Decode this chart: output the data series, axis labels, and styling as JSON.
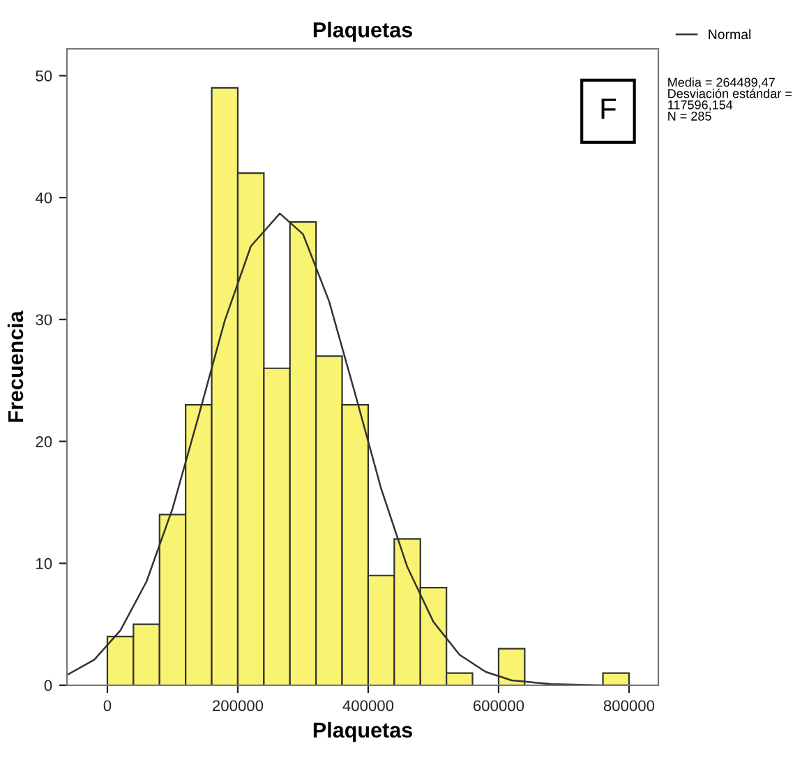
{
  "chart_data": {
    "type": "histogram",
    "title": "Plaquetas",
    "xlabel": "Plaquetas",
    "ylabel": "Frecuencia",
    "bins": [
      0,
      40000,
      80000,
      120000,
      160000,
      200000,
      240000,
      280000,
      320000,
      360000,
      400000,
      440000,
      480000,
      520000,
      560000,
      600000,
      640000,
      680000,
      720000,
      760000,
      800000
    ],
    "values": [
      4,
      5,
      14,
      23,
      49,
      42,
      26,
      38,
      27,
      23,
      9,
      12,
      8,
      1,
      0,
      3,
      0,
      0,
      0,
      1
    ],
    "color": "#f8f471",
    "series": [
      {
        "type": "line",
        "name": "Normal",
        "color": "#333333",
        "x": [
          -60000,
          -20000,
          20000,
          60000,
          100000,
          140000,
          180000,
          220000,
          264489,
          300000,
          340000,
          380000,
          420000,
          460000,
          500000,
          540000,
          580000,
          620000,
          680000,
          760000,
          800000
        ],
        "values": [
          0.9,
          2.1,
          4.5,
          8.5,
          14.5,
          22.1,
          29.9,
          36.0,
          38.7,
          37.0,
          31.5,
          23.9,
          16.1,
          9.7,
          5.2,
          2.5,
          1.1,
          0.4,
          0.1,
          0,
          0
        ]
      }
    ],
    "xlim": [
      -62000,
      845000
    ],
    "xticks": [
      0,
      200000,
      400000,
      600000,
      800000
    ],
    "ylim": [
      0,
      52.2
    ],
    "yticks": [
      0,
      10,
      20,
      30,
      40,
      50
    ],
    "grid": false,
    "legend": "top right",
    "annotations": [
      "F",
      "Media = 264489,47\nDesviación estándar =\n117596,154\nN = 285"
    ]
  }
}
